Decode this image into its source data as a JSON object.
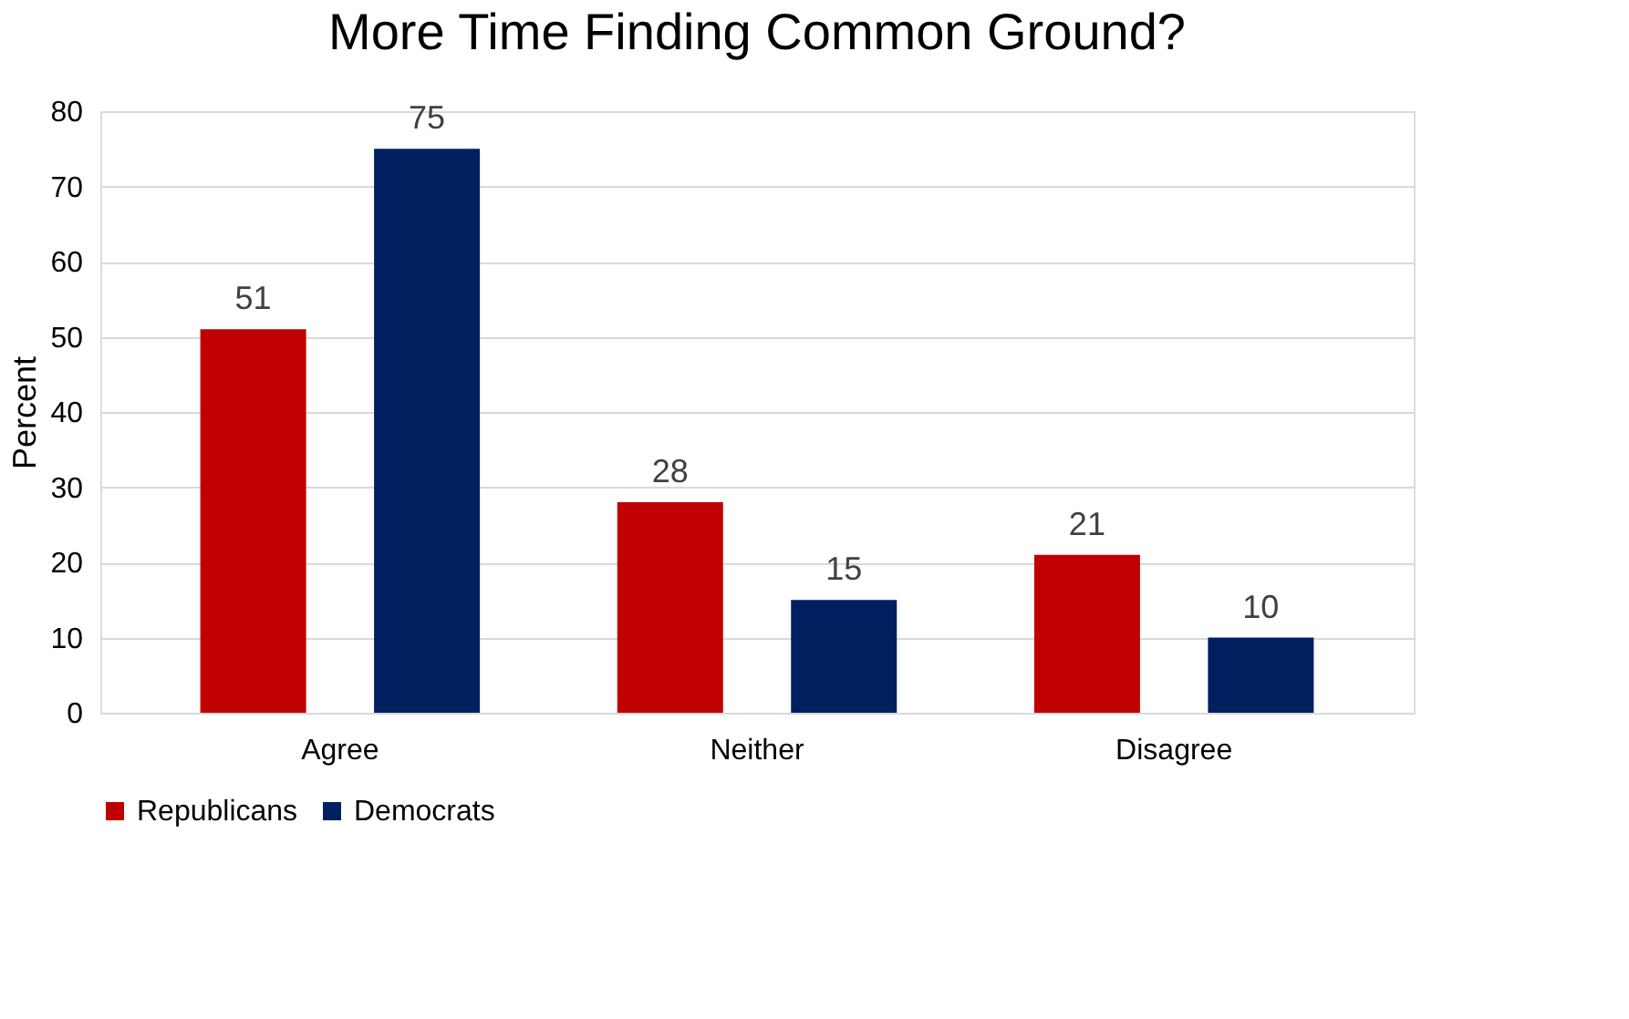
{
  "chart_data": {
    "type": "bar",
    "title": "More Time Finding Common Ground?",
    "ylabel": "Percent",
    "categories": [
      "Agree",
      "Neither",
      "Disagree"
    ],
    "series": [
      {
        "name": "Republicans",
        "color": "#c00000",
        "values": [
          51,
          28,
          21
        ]
      },
      {
        "name": "Democrats",
        "color": "#002060",
        "values": [
          75,
          15,
          10
        ]
      }
    ],
    "ylim": [
      0,
      80
    ],
    "yticks": [
      0,
      10,
      20,
      30,
      40,
      50,
      60,
      70,
      80
    ],
    "grid": "y",
    "legend": "bottom",
    "data_labels": true
  }
}
